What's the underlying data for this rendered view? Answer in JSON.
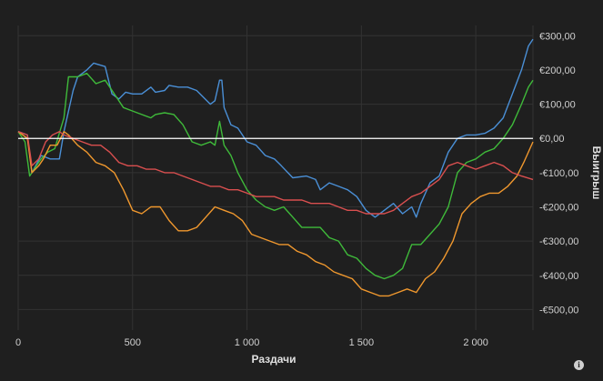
{
  "chart_data": {
    "type": "line",
    "xlabel": "Раздачи",
    "ylabel": "Выигрыш",
    "xlim": [
      0,
      2250
    ],
    "ylim": [
      -560,
      330
    ],
    "x_ticks": [
      {
        "value": 0,
        "label": "0"
      },
      {
        "value": 500,
        "label": "500"
      },
      {
        "value": 1000,
        "label": "1 000"
      },
      {
        "value": 1500,
        "label": "1 500"
      },
      {
        "value": 2000,
        "label": "2 000"
      }
    ],
    "y_ticks": [
      {
        "value": 300,
        "label": "€300,00"
      },
      {
        "value": 200,
        "label": "€200,00"
      },
      {
        "value": 100,
        "label": "€100,00"
      },
      {
        "value": 0,
        "label": "€0,00"
      },
      {
        "value": -100,
        "label": "-€100,00"
      },
      {
        "value": -200,
        "label": "-€200,00"
      },
      {
        "value": -300,
        "label": "-€300,00"
      },
      {
        "value": -400,
        "label": "-€400,00"
      },
      {
        "value": -500,
        "label": "-€500,00"
      }
    ],
    "grid": true,
    "zero_line": true,
    "series": [
      {
        "color": "#4a8fd6",
        "points": [
          [
            0,
            20
          ],
          [
            40,
            10
          ],
          [
            60,
            -100
          ],
          [
            100,
            -50
          ],
          [
            140,
            -60
          ],
          [
            180,
            -60
          ],
          [
            200,
            20
          ],
          [
            240,
            140
          ],
          [
            260,
            180
          ],
          [
            300,
            200
          ],
          [
            330,
            220
          ],
          [
            380,
            210
          ],
          [
            410,
            130
          ],
          [
            440,
            115
          ],
          [
            470,
            135
          ],
          [
            500,
            130
          ],
          [
            540,
            130
          ],
          [
            580,
            150
          ],
          [
            600,
            135
          ],
          [
            640,
            140
          ],
          [
            660,
            155
          ],
          [
            700,
            150
          ],
          [
            740,
            150
          ],
          [
            780,
            140
          ],
          [
            840,
            100
          ],
          [
            860,
            110
          ],
          [
            880,
            170
          ],
          [
            890,
            170
          ],
          [
            900,
            90
          ],
          [
            930,
            40
          ],
          [
            960,
            30
          ],
          [
            1000,
            -10
          ],
          [
            1040,
            -20
          ],
          [
            1080,
            -50
          ],
          [
            1120,
            -60
          ],
          [
            1150,
            -80
          ],
          [
            1200,
            -115
          ],
          [
            1260,
            -110
          ],
          [
            1300,
            -120
          ],
          [
            1320,
            -150
          ],
          [
            1360,
            -130
          ],
          [
            1400,
            -140
          ],
          [
            1440,
            -150
          ],
          [
            1480,
            -170
          ],
          [
            1520,
            -210
          ],
          [
            1560,
            -230
          ],
          [
            1600,
            -210
          ],
          [
            1640,
            -190
          ],
          [
            1680,
            -220
          ],
          [
            1720,
            -200
          ],
          [
            1740,
            -230
          ],
          [
            1760,
            -190
          ],
          [
            1800,
            -130
          ],
          [
            1840,
            -110
          ],
          [
            1880,
            -40
          ],
          [
            1900,
            -20
          ],
          [
            1920,
            0
          ],
          [
            1960,
            10
          ],
          [
            2000,
            10
          ],
          [
            2040,
            15
          ],
          [
            2080,
            30
          ],
          [
            2120,
            60
          ],
          [
            2160,
            130
          ],
          [
            2200,
            200
          ],
          [
            2230,
            270
          ],
          [
            2250,
            290
          ]
        ]
      },
      {
        "color": "#3fba3a",
        "points": [
          [
            0,
            20
          ],
          [
            30,
            -10
          ],
          [
            50,
            -110
          ],
          [
            80,
            -80
          ],
          [
            100,
            -60
          ],
          [
            130,
            -40
          ],
          [
            160,
            -30
          ],
          [
            200,
            60
          ],
          [
            220,
            180
          ],
          [
            260,
            180
          ],
          [
            300,
            190
          ],
          [
            340,
            160
          ],
          [
            380,
            170
          ],
          [
            420,
            130
          ],
          [
            460,
            90
          ],
          [
            500,
            80
          ],
          [
            540,
            70
          ],
          [
            580,
            60
          ],
          [
            600,
            70
          ],
          [
            640,
            75
          ],
          [
            680,
            70
          ],
          [
            720,
            40
          ],
          [
            760,
            -10
          ],
          [
            800,
            -20
          ],
          [
            840,
            -10
          ],
          [
            860,
            -20
          ],
          [
            880,
            50
          ],
          [
            900,
            -20
          ],
          [
            930,
            -50
          ],
          [
            960,
            -100
          ],
          [
            1000,
            -150
          ],
          [
            1040,
            -180
          ],
          [
            1080,
            -200
          ],
          [
            1120,
            -210
          ],
          [
            1160,
            -200
          ],
          [
            1200,
            -230
          ],
          [
            1240,
            -260
          ],
          [
            1280,
            -260
          ],
          [
            1320,
            -260
          ],
          [
            1360,
            -290
          ],
          [
            1400,
            -300
          ],
          [
            1440,
            -340
          ],
          [
            1480,
            -350
          ],
          [
            1520,
            -380
          ],
          [
            1560,
            -400
          ],
          [
            1600,
            -410
          ],
          [
            1640,
            -400
          ],
          [
            1680,
            -380
          ],
          [
            1720,
            -310
          ],
          [
            1760,
            -310
          ],
          [
            1800,
            -280
          ],
          [
            1840,
            -250
          ],
          [
            1880,
            -200
          ],
          [
            1920,
            -100
          ],
          [
            1960,
            -70
          ],
          [
            2000,
            -60
          ],
          [
            2040,
            -40
          ],
          [
            2080,
            -30
          ],
          [
            2120,
            0
          ],
          [
            2160,
            40
          ],
          [
            2200,
            100
          ],
          [
            2230,
            150
          ],
          [
            2250,
            170
          ]
        ]
      },
      {
        "color": "#f0982e",
        "points": [
          [
            0,
            20
          ],
          [
            40,
            0
          ],
          [
            60,
            -100
          ],
          [
            90,
            -80
          ],
          [
            110,
            -60
          ],
          [
            140,
            -20
          ],
          [
            170,
            -20
          ],
          [
            200,
            20
          ],
          [
            220,
            10
          ],
          [
            260,
            -20
          ],
          [
            300,
            -40
          ],
          [
            340,
            -70
          ],
          [
            380,
            -80
          ],
          [
            420,
            -100
          ],
          [
            460,
            -150
          ],
          [
            500,
            -210
          ],
          [
            540,
            -220
          ],
          [
            580,
            -200
          ],
          [
            620,
            -200
          ],
          [
            660,
            -240
          ],
          [
            700,
            -270
          ],
          [
            740,
            -270
          ],
          [
            780,
            -260
          ],
          [
            820,
            -230
          ],
          [
            860,
            -200
          ],
          [
            900,
            -210
          ],
          [
            940,
            -220
          ],
          [
            980,
            -240
          ],
          [
            1020,
            -280
          ],
          [
            1060,
            -290
          ],
          [
            1100,
            -300
          ],
          [
            1140,
            -310
          ],
          [
            1180,
            -310
          ],
          [
            1220,
            -330
          ],
          [
            1260,
            -340
          ],
          [
            1300,
            -360
          ],
          [
            1340,
            -370
          ],
          [
            1380,
            -390
          ],
          [
            1420,
            -400
          ],
          [
            1460,
            -410
          ],
          [
            1500,
            -440
          ],
          [
            1540,
            -450
          ],
          [
            1580,
            -460
          ],
          [
            1620,
            -460
          ],
          [
            1660,
            -450
          ],
          [
            1700,
            -440
          ],
          [
            1740,
            -450
          ],
          [
            1780,
            -410
          ],
          [
            1820,
            -390
          ],
          [
            1860,
            -350
          ],
          [
            1900,
            -300
          ],
          [
            1940,
            -220
          ],
          [
            1980,
            -190
          ],
          [
            2020,
            -170
          ],
          [
            2060,
            -160
          ],
          [
            2100,
            -160
          ],
          [
            2140,
            -140
          ],
          [
            2180,
            -110
          ],
          [
            2210,
            -70
          ],
          [
            2250,
            -10
          ]
        ]
      },
      {
        "color": "#d94f4f",
        "points": [
          [
            0,
            20
          ],
          [
            40,
            10
          ],
          [
            60,
            -80
          ],
          [
            90,
            -60
          ],
          [
            120,
            -10
          ],
          [
            150,
            10
          ],
          [
            180,
            20
          ],
          [
            200,
            10
          ],
          [
            240,
            0
          ],
          [
            280,
            -10
          ],
          [
            320,
            -20
          ],
          [
            360,
            -20
          ],
          [
            400,
            -40
          ],
          [
            440,
            -70
          ],
          [
            480,
            -80
          ],
          [
            520,
            -80
          ],
          [
            560,
            -90
          ],
          [
            600,
            -90
          ],
          [
            640,
            -100
          ],
          [
            680,
            -100
          ],
          [
            720,
            -110
          ],
          [
            760,
            -120
          ],
          [
            800,
            -130
          ],
          [
            840,
            -140
          ],
          [
            880,
            -140
          ],
          [
            920,
            -150
          ],
          [
            960,
            -150
          ],
          [
            1000,
            -160
          ],
          [
            1040,
            -170
          ],
          [
            1080,
            -170
          ],
          [
            1120,
            -170
          ],
          [
            1160,
            -180
          ],
          [
            1200,
            -180
          ],
          [
            1240,
            -180
          ],
          [
            1280,
            -190
          ],
          [
            1320,
            -190
          ],
          [
            1360,
            -190
          ],
          [
            1400,
            -200
          ],
          [
            1440,
            -210
          ],
          [
            1480,
            -210
          ],
          [
            1520,
            -220
          ],
          [
            1560,
            -220
          ],
          [
            1600,
            -220
          ],
          [
            1640,
            -210
          ],
          [
            1680,
            -190
          ],
          [
            1720,
            -170
          ],
          [
            1760,
            -160
          ],
          [
            1800,
            -140
          ],
          [
            1840,
            -120
          ],
          [
            1880,
            -80
          ],
          [
            1920,
            -70
          ],
          [
            1960,
            -80
          ],
          [
            2000,
            -90
          ],
          [
            2040,
            -80
          ],
          [
            2080,
            -70
          ],
          [
            2120,
            -80
          ],
          [
            2160,
            -100
          ],
          [
            2200,
            -110
          ],
          [
            2250,
            -120
          ]
        ]
      }
    ]
  },
  "info_icon": "i"
}
